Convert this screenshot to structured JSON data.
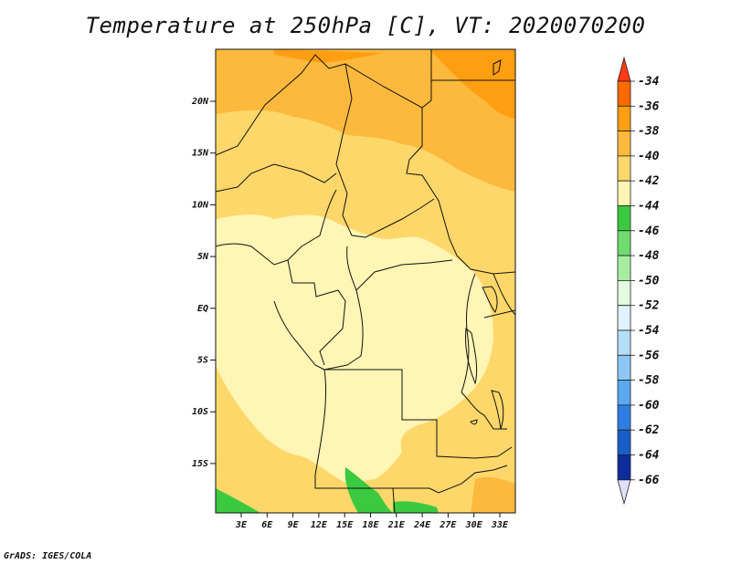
{
  "title": "Temperature at 250hPa [C], VT: 2020070200",
  "credit": "GrADS: IGES/COLA",
  "lat_ticks": [
    "20N",
    "15N",
    "10N",
    "5N",
    "EQ",
    "5S",
    "10S",
    "15S"
  ],
  "lon_ticks": [
    "3E",
    "6E",
    "9E",
    "12E",
    "15E",
    "18E",
    "21E",
    "24E",
    "27E",
    "30E",
    "33E"
  ],
  "legend": {
    "labels": [
      "-34",
      "-36",
      "-38",
      "-40",
      "-42",
      "-44",
      "-46",
      "-48",
      "-50",
      "-52",
      "-54",
      "-56",
      "-58",
      "-60",
      "-62",
      "-64",
      "-66"
    ],
    "colors": [
      "#ff3a14",
      "#ff6a00",
      "#ff9e10",
      "#fdb93d",
      "#fdd76a",
      "#fff5b4",
      "#3bc940",
      "#6fdc6f",
      "#a5eea0",
      "#e2fbe0",
      "#dff2fd",
      "#b7def8",
      "#8dc6f5",
      "#5aa8f0",
      "#2d7ee3",
      "#185ec9",
      "#0e2d9b",
      "#0a0a6a",
      "#e0e0ff"
    ]
  }
}
